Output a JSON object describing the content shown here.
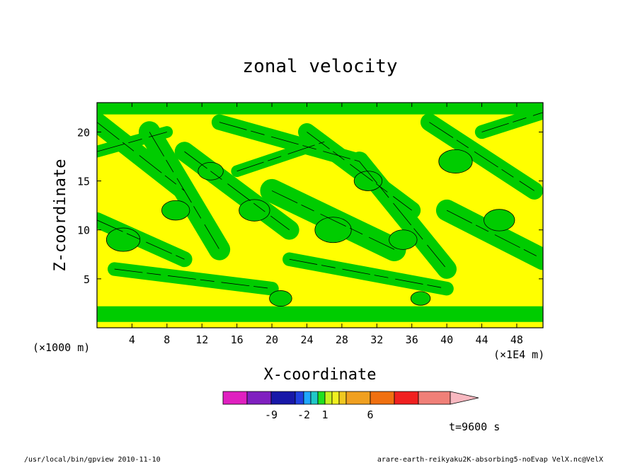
{
  "chart_data": {
    "type": "heatmap",
    "title": "zonal velocity",
    "xlabel": "X-coordinate",
    "ylabel": "Z-coordinate",
    "x_unit_left": "(×1000 m)",
    "x_unit_right": "(×1E4 m)",
    "xlim": [
      0,
      51
    ],
    "ylim": [
      0,
      23
    ],
    "x_ticks": [
      4,
      8,
      12,
      16,
      20,
      24,
      28,
      32,
      36,
      40,
      44,
      48
    ],
    "y_ticks": [
      5,
      10,
      15,
      20
    ],
    "time_label": "t=9600 s",
    "colorbar": {
      "colors": [
        "#e020c0",
        "#8020c0",
        "#1818a8",
        "#2040e0",
        "#20a8ff",
        "#20c8c8",
        "#20e020",
        "#c8f020",
        "#f0f020",
        "#f0c820",
        "#f0a020",
        "#f07010",
        "#f02020",
        "#f08078",
        "#f8b8c0"
      ],
      "tick_labels": [
        "-9",
        "-2",
        "1",
        "6"
      ],
      "extend": "max"
    },
    "dominant_colors": {
      "positive_low": "#ffff00",
      "negative_low": "#00cc00",
      "contour_line": "#000000"
    }
  },
  "footer": {
    "left": "/usr/local/bin/gpview   2010-11-10",
    "right": "arare-earth-reikyaku2K-absorbing5-noEvap_VelX.nc@VelX"
  }
}
